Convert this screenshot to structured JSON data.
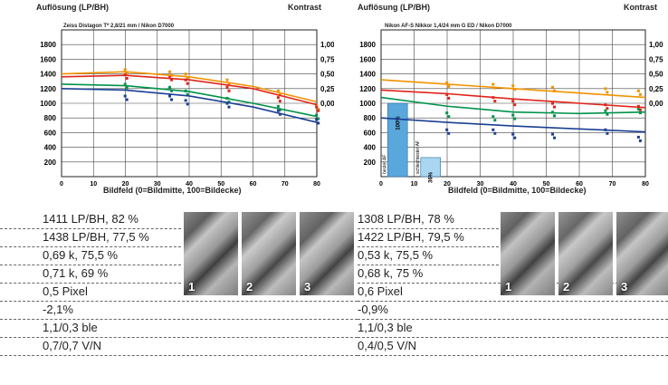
{
  "chart_data": [
    {
      "type": "line",
      "title": "Auflösung (LP/BH)",
      "subtitle": "Zeiss Distagon T* 2,8/21 mm / Nikon D7000",
      "right_label": "Kontrast",
      "xlabel": "Bildfeld (0=Bildmitte, 100=Bildecke)",
      "xlim": [
        0,
        80
      ],
      "ylim": [
        0,
        2000
      ],
      "x_ticks": [
        0,
        10,
        20,
        30,
        40,
        50,
        60,
        70,
        80
      ],
      "y_ticks": [
        200,
        400,
        600,
        800,
        1000,
        1200,
        1400,
        1600,
        1800
      ],
      "contrast_ticks": [
        "1,00",
        "0,75",
        "0,50",
        "0,25",
        "0,00"
      ],
      "series": [
        {
          "color": "#f39200",
          "x": [
            0,
            20,
            40,
            60,
            80
          ],
          "y": [
            1400,
            1430,
            1360,
            1230,
            1020
          ]
        },
        {
          "color": "#e0251b",
          "x": [
            0,
            20,
            40,
            60,
            80
          ],
          "y": [
            1360,
            1380,
            1320,
            1200,
            980
          ]
        },
        {
          "color": "#00924a",
          "x": [
            0,
            20,
            40,
            60,
            80
          ],
          "y": [
            1260,
            1240,
            1160,
            1000,
            820
          ]
        },
        {
          "color": "#1b3f95",
          "x": [
            0,
            20,
            40,
            60,
            80
          ],
          "y": [
            1200,
            1180,
            1100,
            950,
            740
          ]
        }
      ],
      "points": [
        {
          "color": "#f39200",
          "x": [
            20,
            34,
            39,
            52,
            68,
            80
          ],
          "y": [
            1440,
            1410,
            1380,
            1300,
            1150,
            950
          ]
        },
        {
          "color": "#e0251b",
          "x": [
            20,
            34,
            39,
            52,
            68,
            80
          ],
          "y": [
            1370,
            1350,
            1300,
            1200,
            1060,
            930
          ]
        },
        {
          "color": "#00924a",
          "x": [
            20,
            34,
            39,
            52,
            68,
            80
          ],
          "y": [
            1240,
            1200,
            1150,
            1050,
            940,
            820
          ]
        },
        {
          "color": "#1b3f95",
          "x": [
            20,
            34,
            39,
            52,
            68,
            80
          ],
          "y": [
            1080,
            1080,
            1020,
            980,
            880,
            760
          ]
        }
      ]
    },
    {
      "type": "line",
      "title": "Auflösung (LP/BH)",
      "subtitle": "Nikon AF-S Nikkor 1,4/24 mm G ED / Nikon D7000",
      "right_label": "Kontrast",
      "xlabel": "Bildfeld (0=Bildmitte, 100=Bildecke)",
      "xlim": [
        0,
        80
      ],
      "ylim": [
        0,
        2000
      ],
      "x_ticks": [
        0,
        10,
        20,
        30,
        40,
        50,
        60,
        70,
        80
      ],
      "y_ticks": [
        200,
        400,
        600,
        800,
        1000,
        1200,
        1400,
        1600,
        1800
      ],
      "contrast_ticks": [
        "1,00",
        "0,75",
        "0,50",
        "0,25",
        "0,00"
      ],
      "bars": [
        {
          "x": 5,
          "value": 1000,
          "label": "100%",
          "caption": "bester AF"
        },
        {
          "x": 15,
          "value": 260,
          "label": "36%",
          "caption": "schlechtester AF"
        }
      ],
      "series": [
        {
          "color": "#f39200",
          "x": [
            0,
            20,
            40,
            60,
            80
          ],
          "y": [
            1320,
            1260,
            1200,
            1140,
            1080
          ]
        },
        {
          "color": "#e0251b",
          "x": [
            0,
            20,
            40,
            60,
            80
          ],
          "y": [
            1180,
            1130,
            1060,
            1000,
            940
          ]
        },
        {
          "color": "#00924a",
          "x": [
            0,
            20,
            40,
            60,
            80
          ],
          "y": [
            1080,
            960,
            880,
            860,
            880
          ]
        },
        {
          "color": "#1b3f95",
          "x": [
            0,
            20,
            40,
            60,
            80
          ],
          "y": [
            800,
            740,
            690,
            650,
            610
          ]
        }
      ],
      "points": [
        {
          "color": "#f39200",
          "x": [
            20,
            34,
            40,
            52,
            68,
            78
          ],
          "y": [
            1260,
            1240,
            1220,
            1200,
            1180,
            1150
          ]
        },
        {
          "color": "#e0251b",
          "x": [
            20,
            34,
            40,
            52,
            68,
            78
          ],
          "y": [
            1100,
            1060,
            1010,
            980,
            960,
            940
          ]
        },
        {
          "color": "#00924a",
          "x": [
            20,
            34,
            40,
            52,
            68,
            78
          ],
          "y": [
            850,
            800,
            820,
            860,
            880,
            900
          ]
        },
        {
          "color": "#1b3f95",
          "x": [
            20,
            34,
            40,
            52,
            68,
            78
          ],
          "y": [
            620,
            620,
            560,
            560,
            620,
            520
          ]
        }
      ]
    }
  ],
  "table": {
    "left": [
      "1411 LP/BH, 82 %",
      "1438 LP/BH, 77,5 %",
      "0,69 k, 75,5 %",
      "0,71 k, 69 %",
      "0,5 Pixel",
      "-2,1%",
      "1,1/0,3 ble",
      "0,7/0,7 V/N"
    ],
    "right": [
      "1308 LP/BH, 78 %",
      "1422 LP/BH, 79,5 %",
      "0,53 k, 75,5 %",
      "0,68 k, 75 %",
      "0,6 Pixel",
      "-0,9%",
      "1,1/0,3 ble",
      "0,4/0,5 V/N"
    ],
    "sample_numbers": [
      "1",
      "2",
      "3"
    ]
  }
}
